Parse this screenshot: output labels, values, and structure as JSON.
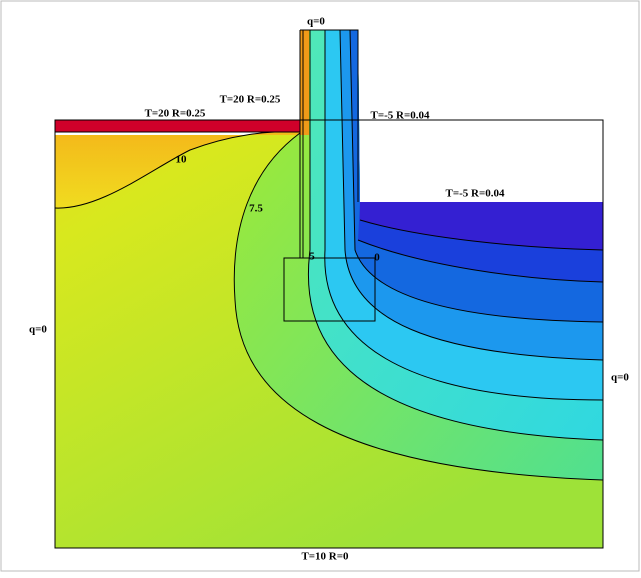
{
  "boundaries": {
    "wall_top": "q=0",
    "wall_inside": "T=20 R=0.25",
    "floor_inside": "T=20 R=0.25",
    "wall_outside": "T=-5 R=0.04",
    "ground_outside": "T=-5 R=0.04",
    "left": "q=0",
    "right": "q=0",
    "bottom": "T=10 R=0"
  },
  "contours": [
    "10",
    "7.5",
    "5",
    "0"
  ]
}
